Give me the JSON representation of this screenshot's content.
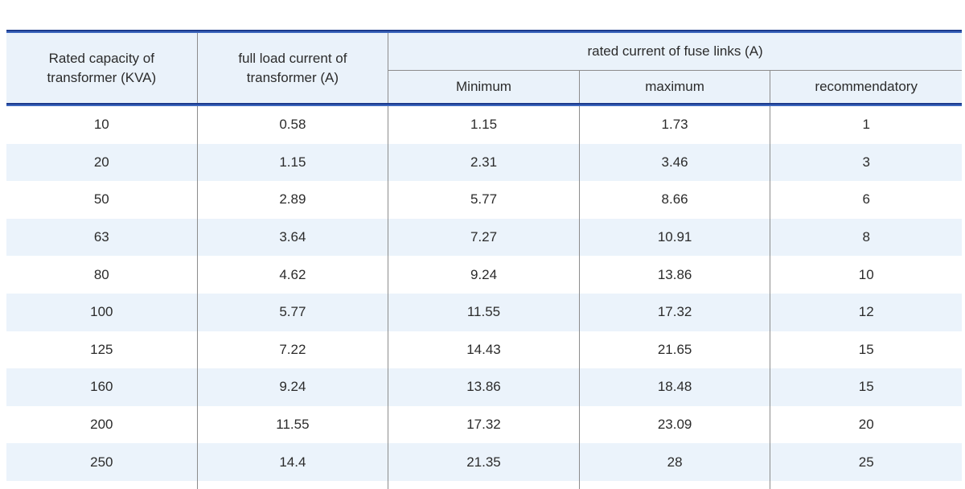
{
  "colors": {
    "rule_navy": "#1c3a8c",
    "rule_blue": "#3c66bd",
    "header_bg": "#eaf2fa",
    "row_alt_bg": "#ebf3fb",
    "grid_line": "#8c8c8c",
    "text": "#2b2b2b"
  },
  "chart_data": {
    "type": "table",
    "header": {
      "capacity": {
        "line1": "Rated capacity of",
        "line2": "transformer (KVA)"
      },
      "full_load": {
        "line1": "full load  current of",
        "line2": "transformer (A)"
      },
      "fuse_group": "rated current of fuse links (A)",
      "sub": [
        "Minimum",
        "maximum",
        "recommendatory"
      ]
    },
    "columns": [
      "Rated capacity of transformer (KVA)",
      "full load current of transformer (A)",
      "rated current of fuse links (A) - Minimum",
      "rated current of fuse links (A) - maximum",
      "rated current of fuse links (A) - recommendatory"
    ],
    "rows": [
      [
        "10",
        "0.58",
        "1.15",
        "1.73",
        "1"
      ],
      [
        "20",
        "1.15",
        "2.31",
        "3.46",
        "3"
      ],
      [
        "50",
        "2.89",
        "5.77",
        "8.66",
        "6"
      ],
      [
        "63",
        "3.64",
        "7.27",
        "10.91",
        "8"
      ],
      [
        "80",
        "4.62",
        "9.24",
        "13.86",
        "10"
      ],
      [
        "100",
        "5.77",
        "11.55",
        "17.32",
        "12"
      ],
      [
        "125",
        "7.22",
        "14.43",
        "21.65",
        "15"
      ],
      [
        "160",
        "9.24",
        "13.86",
        "18.48",
        "15"
      ],
      [
        "200",
        "11.55",
        "17.32",
        "23.09",
        "20"
      ],
      [
        "250",
        "14.4",
        "21.35",
        "28",
        "25"
      ]
    ]
  }
}
